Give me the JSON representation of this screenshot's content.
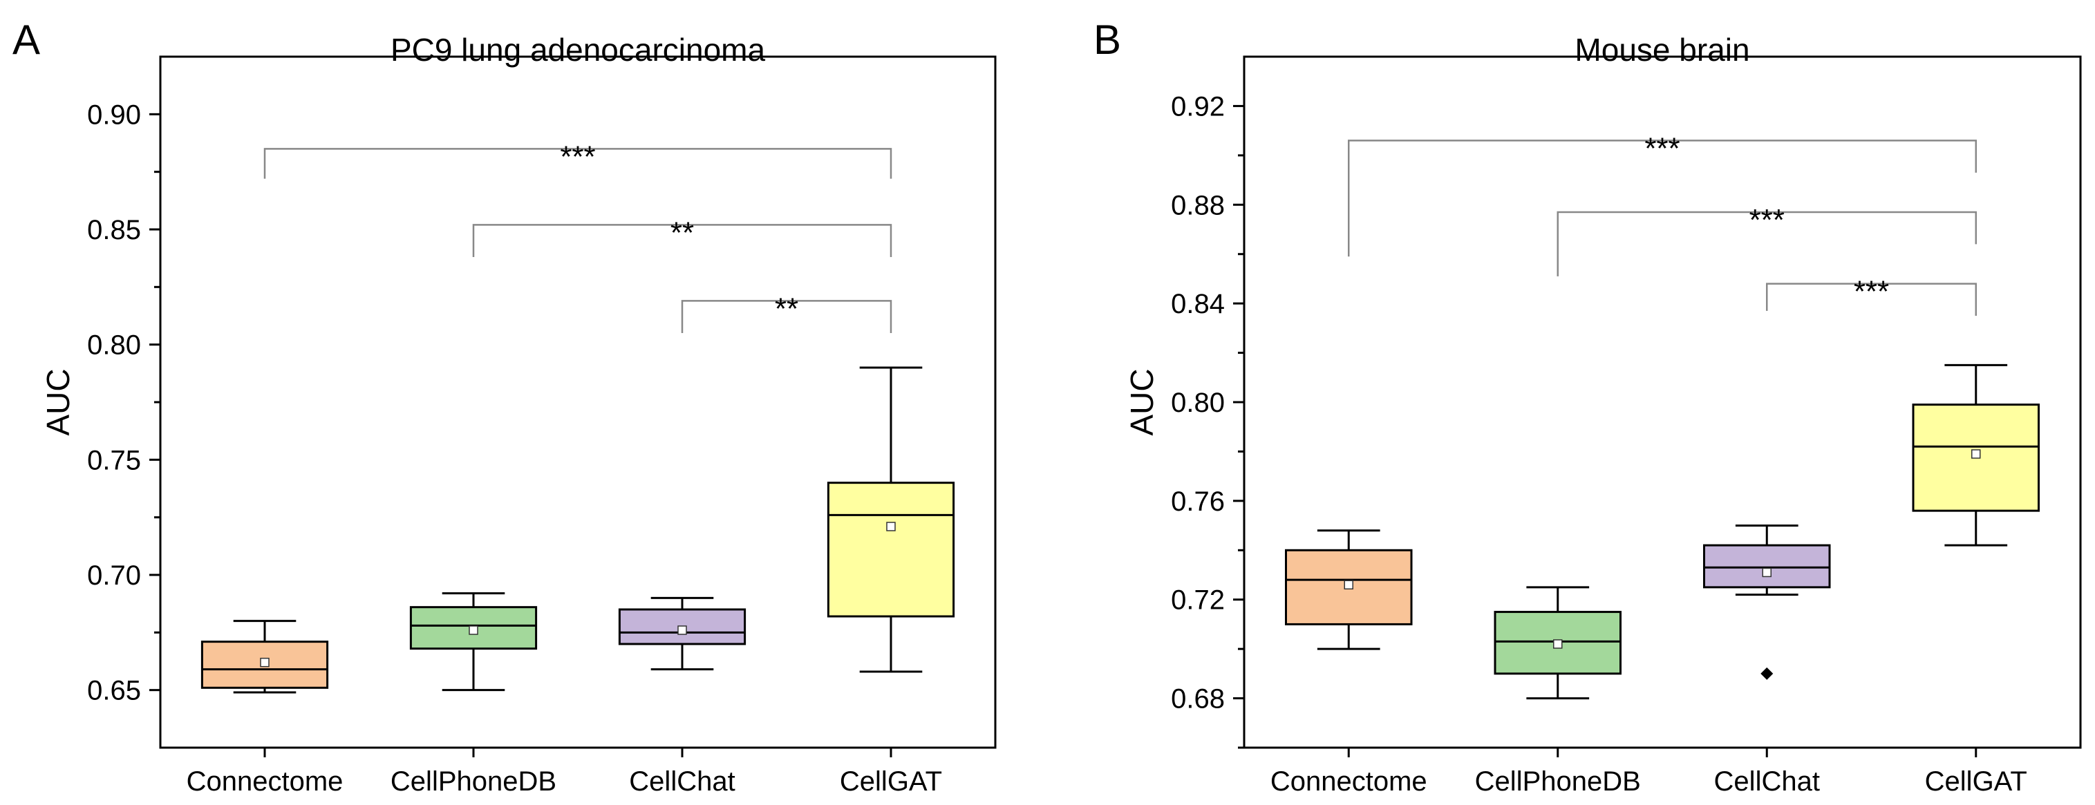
{
  "chart_data": [
    {
      "type": "box",
      "panel_label": "A",
      "title": "PC9 lung adenocarcinoma",
      "ylabel": "AUC",
      "xlabel": "",
      "ylim": [
        0.625,
        0.925
      ],
      "yticks": [
        0.65,
        0.7,
        0.75,
        0.8,
        0.85,
        0.9
      ],
      "ytick_labels": [
        "0.65",
        "0.70",
        "0.75",
        "0.80",
        "0.85",
        "0.90"
      ],
      "categories": [
        "Connectome",
        "CellPhoneDB",
        "CellChat",
        "CellGAT"
      ],
      "boxes": [
        {
          "name": "Connectome",
          "color": "#F9C498",
          "whisker_low": 0.649,
          "q1": 0.651,
          "median": 0.659,
          "q3": 0.671,
          "whisker_high": 0.68,
          "mean": 0.662,
          "outliers": []
        },
        {
          "name": "CellPhoneDB",
          "color": "#A3D89B",
          "whisker_low": 0.65,
          "q1": 0.668,
          "median": 0.678,
          "q3": 0.686,
          "whisker_high": 0.692,
          "mean": 0.676,
          "outliers": []
        },
        {
          "name": "CellChat",
          "color": "#C4B4D9",
          "whisker_low": 0.659,
          "q1": 0.67,
          "median": 0.675,
          "q3": 0.685,
          "whisker_high": 0.69,
          "mean": 0.676,
          "outliers": []
        },
        {
          "name": "CellGAT",
          "color": "#FFFFA0",
          "whisker_low": 0.658,
          "q1": 0.682,
          "median": 0.726,
          "q3": 0.74,
          "whisker_high": 0.79,
          "mean": 0.721,
          "outliers": []
        }
      ],
      "significance": [
        {
          "from": "Connectome",
          "to": "CellGAT",
          "label": "***",
          "y": 0.885,
          "left_bottom": 0.872,
          "right_bottom": 0.872
        },
        {
          "from": "CellPhoneDB",
          "to": "CellGAT",
          "label": "**",
          "y": 0.852,
          "left_bottom": 0.838,
          "right_bottom": 0.838
        },
        {
          "from": "CellChat",
          "to": "CellGAT",
          "label": "**",
          "y": 0.819,
          "left_bottom": 0.805,
          "right_bottom": 0.805
        }
      ]
    },
    {
      "type": "box",
      "panel_label": "B",
      "title": "Mouse brain",
      "ylabel": "AUC",
      "xlabel": "",
      "ylim": [
        0.66,
        0.94
      ],
      "yticks": [
        0.68,
        0.72,
        0.76,
        0.8,
        0.84,
        0.88,
        0.92
      ],
      "ytick_labels": [
        "0.68",
        "0.72",
        "0.76",
        "0.80",
        "0.84",
        "0.88",
        "0.92"
      ],
      "categories": [
        "Connectome",
        "CellPhoneDB",
        "CellChat",
        "CellGAT"
      ],
      "boxes": [
        {
          "name": "Connectome",
          "color": "#F9C498",
          "whisker_low": 0.7,
          "q1": 0.71,
          "median": 0.728,
          "q3": 0.74,
          "whisker_high": 0.748,
          "mean": 0.726,
          "outliers": []
        },
        {
          "name": "CellPhoneDB",
          "color": "#A3D89B",
          "whisker_low": 0.68,
          "q1": 0.69,
          "median": 0.703,
          "q3": 0.715,
          "whisker_high": 0.725,
          "mean": 0.702,
          "outliers": []
        },
        {
          "name": "CellChat",
          "color": "#C4B4D9",
          "whisker_low": 0.722,
          "q1": 0.725,
          "median": 0.733,
          "q3": 0.742,
          "whisker_high": 0.75,
          "mean": 0.731,
          "outliers": [
            0.69
          ]
        },
        {
          "name": "CellGAT",
          "color": "#FFFFA0",
          "whisker_low": 0.742,
          "q1": 0.756,
          "median": 0.782,
          "q3": 0.799,
          "whisker_high": 0.815,
          "mean": 0.779,
          "outliers": []
        }
      ],
      "significance": [
        {
          "from": "Connectome",
          "to": "CellGAT",
          "label": "***",
          "y": 0.906,
          "left_bottom": 0.859,
          "right_bottom": 0.893
        },
        {
          "from": "CellPhoneDB",
          "to": "CellGAT",
          "label": "***",
          "y": 0.877,
          "left_bottom": 0.851,
          "right_bottom": 0.864
        },
        {
          "from": "CellChat",
          "to": "CellGAT",
          "label": "***",
          "y": 0.848,
          "left_bottom": 0.837,
          "right_bottom": 0.835
        }
      ]
    }
  ]
}
